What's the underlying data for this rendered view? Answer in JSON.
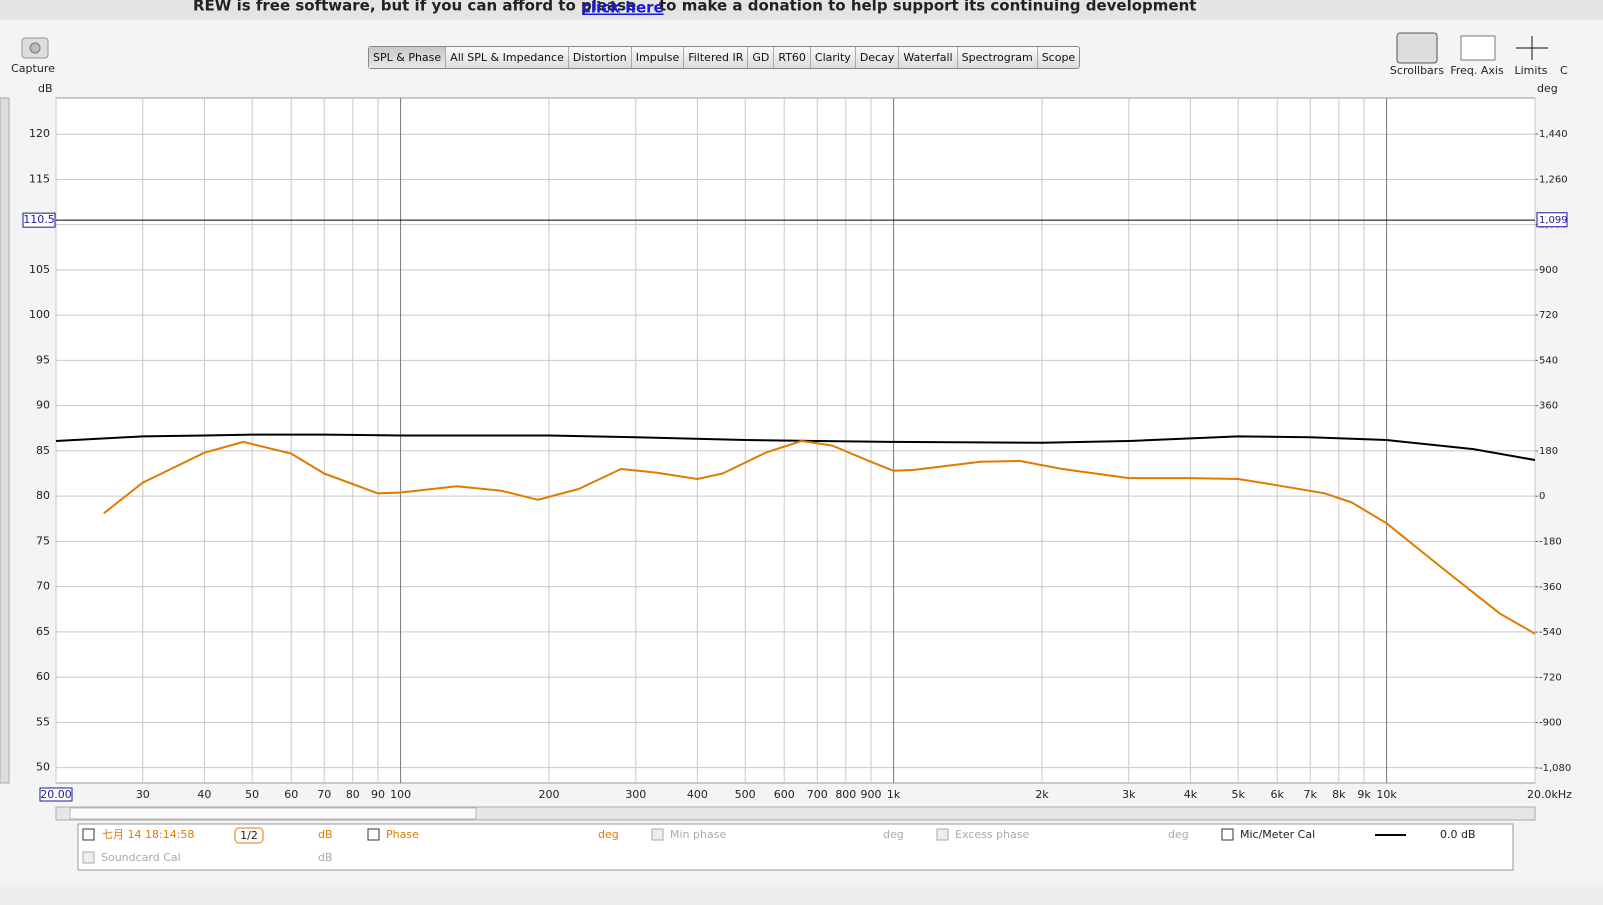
{
  "banner": {
    "before": "REW is free software, but if you can afford to please",
    "link": "click here",
    "after": "to make a donation to help support its continuing development"
  },
  "toolbar": {
    "capture": "Capture",
    "tabs": [
      "SPL & Phase",
      "All SPL & Impedance",
      "Distortion",
      "Impulse",
      "Filtered IR",
      "GD",
      "RT60",
      "Clarity",
      "Decay",
      "Waterfall",
      "Spectrogram",
      "Scope"
    ],
    "right": [
      "Scrollbars",
      "Freq. Axis",
      "Limits",
      "C"
    ]
  },
  "chart_data": {
    "type": "line",
    "y_label": "dB",
    "y2_label": "deg",
    "xscale": "log",
    "grid": true,
    "xlim": [
      20,
      20000
    ],
    "xticks": [
      {
        "value": 20,
        "label": "20.00"
      },
      30,
      40,
      50,
      60,
      70,
      80,
      90,
      100,
      200,
      300,
      400,
      500,
      600,
      700,
      800,
      900,
      {
        "value": 1000,
        "label": "1k"
      },
      {
        "value": 2000,
        "label": "2k"
      },
      {
        "value": 3000,
        "label": "3k"
      },
      {
        "value": 4000,
        "label": "4k"
      },
      {
        "value": 5000,
        "label": "5k"
      },
      {
        "value": 6000,
        "label": "6k"
      },
      {
        "value": 7000,
        "label": "7k"
      },
      {
        "value": 8000,
        "label": "8k"
      },
      {
        "value": 9000,
        "label": "9k"
      },
      {
        "value": 10000,
        "label": "10k"
      },
      {
        "value": 20000,
        "label": "20.0kHz"
      }
    ],
    "ylim": [
      48.3,
      124
    ],
    "yticks": [
      50,
      55,
      60,
      65,
      70,
      75,
      80,
      85,
      90,
      95,
      100,
      105,
      110,
      115,
      120
    ],
    "y2lim": [
      -1140,
      1583
    ],
    "y2ticks": [
      {
        "value": -1080,
        "label": "-1,080"
      },
      -900,
      -720,
      -540,
      -360,
      -180,
      0,
      180,
      360,
      540,
      720,
      900,
      {
        "value": 1080,
        "label": "1,080"
      },
      {
        "value": 1260,
        "label": "1,260"
      },
      {
        "value": 1440,
        "label": "1,440"
      }
    ],
    "cursor": {
      "y": 110.5,
      "y2": {
        "value": 1099,
        "label": "1,099"
      }
    },
    "series": [
      {
        "name": "Mic/Meter Cal",
        "color": "#000000",
        "x": [
          20,
          30,
          40,
          50,
          70,
          100,
          200,
          300,
          500,
          700,
          1000,
          2000,
          3000,
          5000,
          7000,
          10000,
          15000,
          20000
        ],
        "values": [
          86.1,
          86.6,
          86.7,
          86.8,
          86.8,
          86.7,
          86.7,
          86.5,
          86.2,
          86.1,
          86.0,
          85.9,
          86.1,
          86.6,
          86.5,
          86.2,
          85.2,
          84.0
        ]
      },
      {
        "name": "七月 14 18:14:58",
        "color": "#e07b00",
        "x": [
          25,
          30,
          40,
          48,
          60,
          70,
          90,
          100,
          130,
          160,
          190,
          230,
          280,
          330,
          400,
          450,
          550,
          650,
          750,
          900,
          1000,
          1100,
          1500,
          1800,
          2200,
          3000,
          4000,
          5000,
          6000,
          7500,
          8500,
          10000,
          13000,
          17000,
          20000
        ],
        "values": [
          78.1,
          81.5,
          84.8,
          86.0,
          84.7,
          82.5,
          80.3,
          80.4,
          81.1,
          80.6,
          79.6,
          80.8,
          83.0,
          82.6,
          81.9,
          82.5,
          84.8,
          86.1,
          85.6,
          83.8,
          82.8,
          82.9,
          83.8,
          83.9,
          83.0,
          82.0,
          82.0,
          81.9,
          81.2,
          80.3,
          79.3,
          77.0,
          72.0,
          67.0,
          64.8
        ]
      }
    ]
  },
  "legend_bar": {
    "smoothing": "1/2",
    "unit_db": "dB",
    "phase": "Phase",
    "phase_unit": "deg",
    "min_phase": "Min phase",
    "min_phase_unit": "deg",
    "excess_phase": "Excess phase",
    "excess_phase_unit": "deg",
    "cal_offset": "0.0 dB",
    "soundcard_cal": "Soundcard Cal",
    "soundcard_unit": "dB"
  }
}
